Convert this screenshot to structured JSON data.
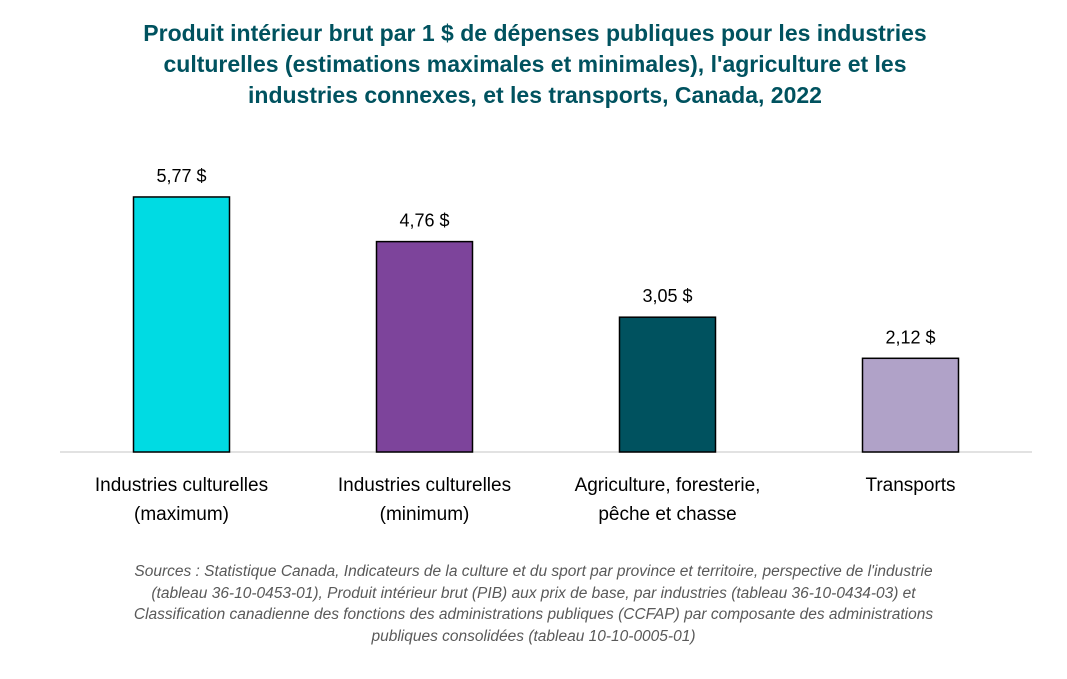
{
  "chart_data": {
    "type": "bar",
    "title_lines": [
      "Produit intérieur brut par 1 $ de dépenses publiques pour les industries",
      "culturelles (estimations maximales et minimales), l'agriculture et les",
      "industries connexes, et les transports, Canada,  2022"
    ],
    "categories": [
      [
        "Industries culturelles",
        "(maximum)"
      ],
      [
        "Industries culturelles",
        "(minimum)"
      ],
      [
        "Agriculture, foresterie,",
        "pêche et chasse"
      ],
      [
        "Transports"
      ]
    ],
    "values": [
      5.77,
      4.76,
      3.05,
      2.12
    ],
    "data_labels": [
      "5,77 $",
      "4,76 $",
      "3,05 $",
      "2,12 $"
    ],
    "colors": [
      "#00dbe3",
      "#7d449b",
      "#00525f",
      "#b0a2c8"
    ],
    "xlabel": "",
    "ylabel": "",
    "ylim": [
      0,
      6
    ],
    "grid": false,
    "legend": "none"
  },
  "source_lines": [
    "Sources : Statistique Canada, Indicateurs de la culture et du sport par province et territoire, perspective de l'industrie",
    "(tableau 36-10-0453-01), Produit intérieur brut (PIB) aux prix de base, par industries (tableau 36-10-0434-03) et",
    "Classification canadienne des fonctions des administrations publiques (CCFAP) par composante des administrations",
    "publiques consolidées (tableau 10-10-0005-01)"
  ]
}
